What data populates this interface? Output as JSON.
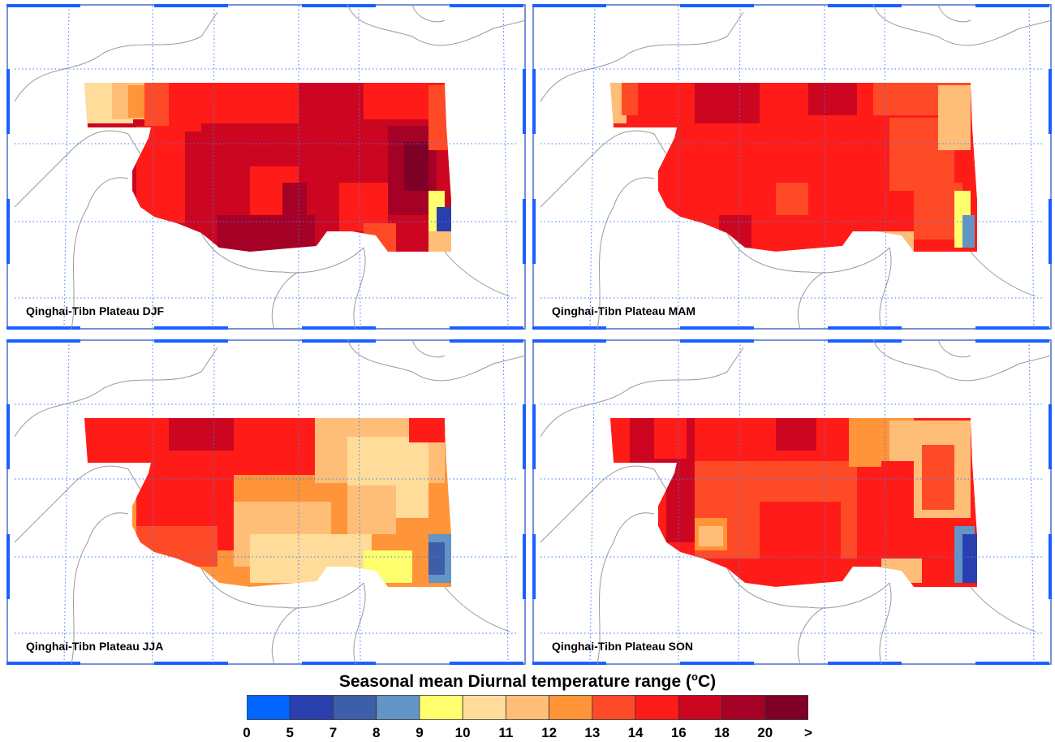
{
  "panels": [
    {
      "label": "Qinghai-Tibn Plateau DJF",
      "season": "DJF"
    },
    {
      "label": "Qinghai-Tibn Plateau MAM",
      "season": "MAM"
    },
    {
      "label": "Qinghai-Tibn Plateau JJA",
      "season": "JJA"
    },
    {
      "label": "Qinghai-Tibn Plateau SON",
      "season": "SON"
    }
  ],
  "chart_data": {
    "type": "heatmap",
    "title_main": "Seasonal mean Diurnal temperature range (",
    "title_sup": "o",
    "title_end": "C)",
    "units": "°C",
    "levels": [
      "0",
      "5",
      "7",
      "8",
      "9",
      "10",
      "11",
      "12",
      "13",
      "14",
      "16",
      "18",
      "20",
      ">"
    ],
    "colors": [
      "#0066ff",
      "#2a3fae",
      "#3d5ea8",
      "#6394c6",
      "#ffff6e",
      "#ffdc9a",
      "#ffbe78",
      "#ff9438",
      "#ff4a28",
      "#ff1c18",
      "#cc0620",
      "#a50025",
      "#7f0027"
    ],
    "dominant_class_by_season": {
      "DJF": "16-18",
      "MAM": "14-16",
      "JJA": "12-13",
      "SON": "14-16"
    }
  }
}
